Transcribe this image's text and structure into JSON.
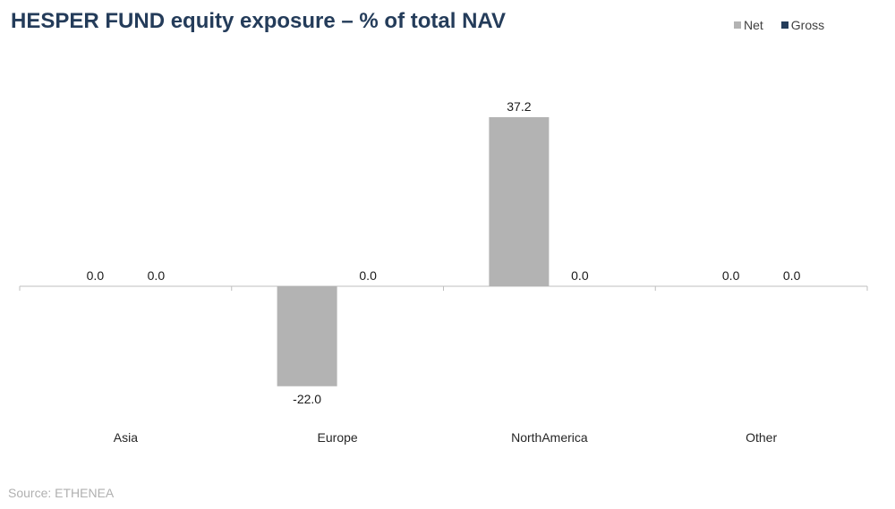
{
  "title": "HESPER FUND equity exposure – % of total NAV",
  "source": "Source: ETHENEA",
  "legend": [
    {
      "label": "Net",
      "color": "#b3b3b3"
    },
    {
      "label": "Gross",
      "color": "#243c5a"
    }
  ],
  "chart_data": {
    "type": "bar",
    "title": "HESPER FUND equity exposure – % of total NAV",
    "categories": [
      "Asia",
      "Europe",
      "NorthAmerica",
      "Other"
    ],
    "series": [
      {
        "name": "Net",
        "values": [
          0.0,
          -22.0,
          37.2,
          0.0
        ],
        "color": "#b3b3b3"
      },
      {
        "name": "Gross",
        "values": [
          0.0,
          0.0,
          0.0,
          0.0
        ],
        "color": "#243c5a"
      }
    ],
    "ylim": [
      -30,
      50
    ],
    "grid": false,
    "legend_position": "top-right",
    "data_labels": true
  }
}
